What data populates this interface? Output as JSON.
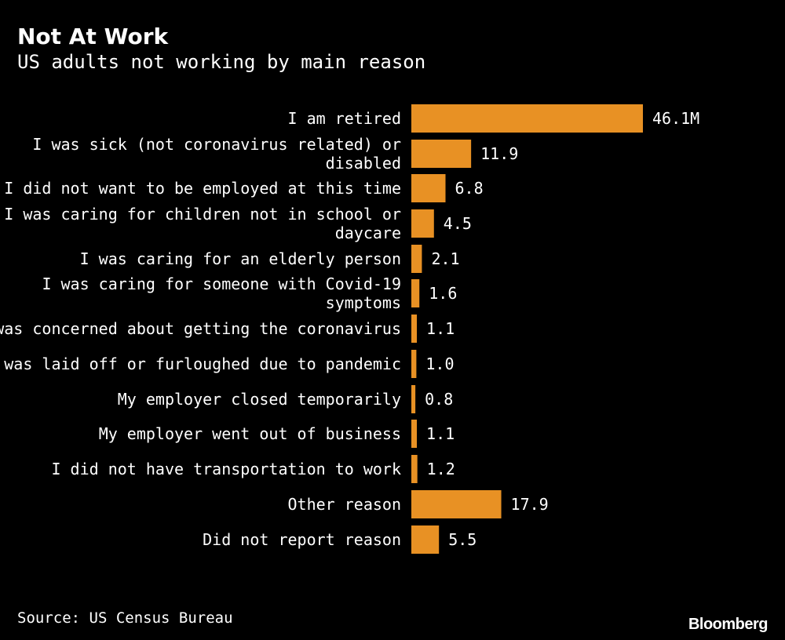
{
  "header": {
    "title": "Not At Work",
    "subtitle": "US adults not working by main reason"
  },
  "footer": {
    "source": "Source: US Census Bureau",
    "brand": "Bloomberg"
  },
  "colors": {
    "background": "#000000",
    "bar": "#E89124",
    "text": "#ffffff"
  },
  "chart_data": {
    "type": "bar",
    "orientation": "horizontal",
    "title": "Not At Work",
    "subtitle": "US adults not working by main reason",
    "xlabel": "",
    "ylabel": "",
    "xlim": [
      0,
      46.1
    ],
    "grid": false,
    "legend": "none",
    "categories": [
      [
        "I am retired"
      ],
      [
        "I was sick (not coronavirus related) or",
        "disabled"
      ],
      [
        "I did not want to be employed at this time"
      ],
      [
        "I was caring for children not in school or",
        "daycare"
      ],
      [
        "I was caring for an elderly person"
      ],
      [
        "I was caring for someone with Covid-19",
        "symptoms"
      ],
      [
        "I was concerned about getting the coronavirus"
      ],
      [
        "I was laid off or furloughed due to pandemic"
      ],
      [
        "My employer closed temporarily"
      ],
      [
        "My employer went out of business"
      ],
      [
        "I did not have transportation to work"
      ],
      [
        "Other reason"
      ],
      [
        "Did not report reason"
      ]
    ],
    "values": [
      46.1,
      11.9,
      6.8,
      4.5,
      2.1,
      1.6,
      1.1,
      1.0,
      0.8,
      1.1,
      1.2,
      17.9,
      5.5
    ],
    "value_labels": [
      "46.1M",
      "11.9",
      "6.8",
      "4.5",
      "2.1",
      "1.6",
      "1.1",
      "1.0",
      "0.8",
      "1.1",
      "1.2",
      "17.9",
      "5.5"
    ]
  }
}
